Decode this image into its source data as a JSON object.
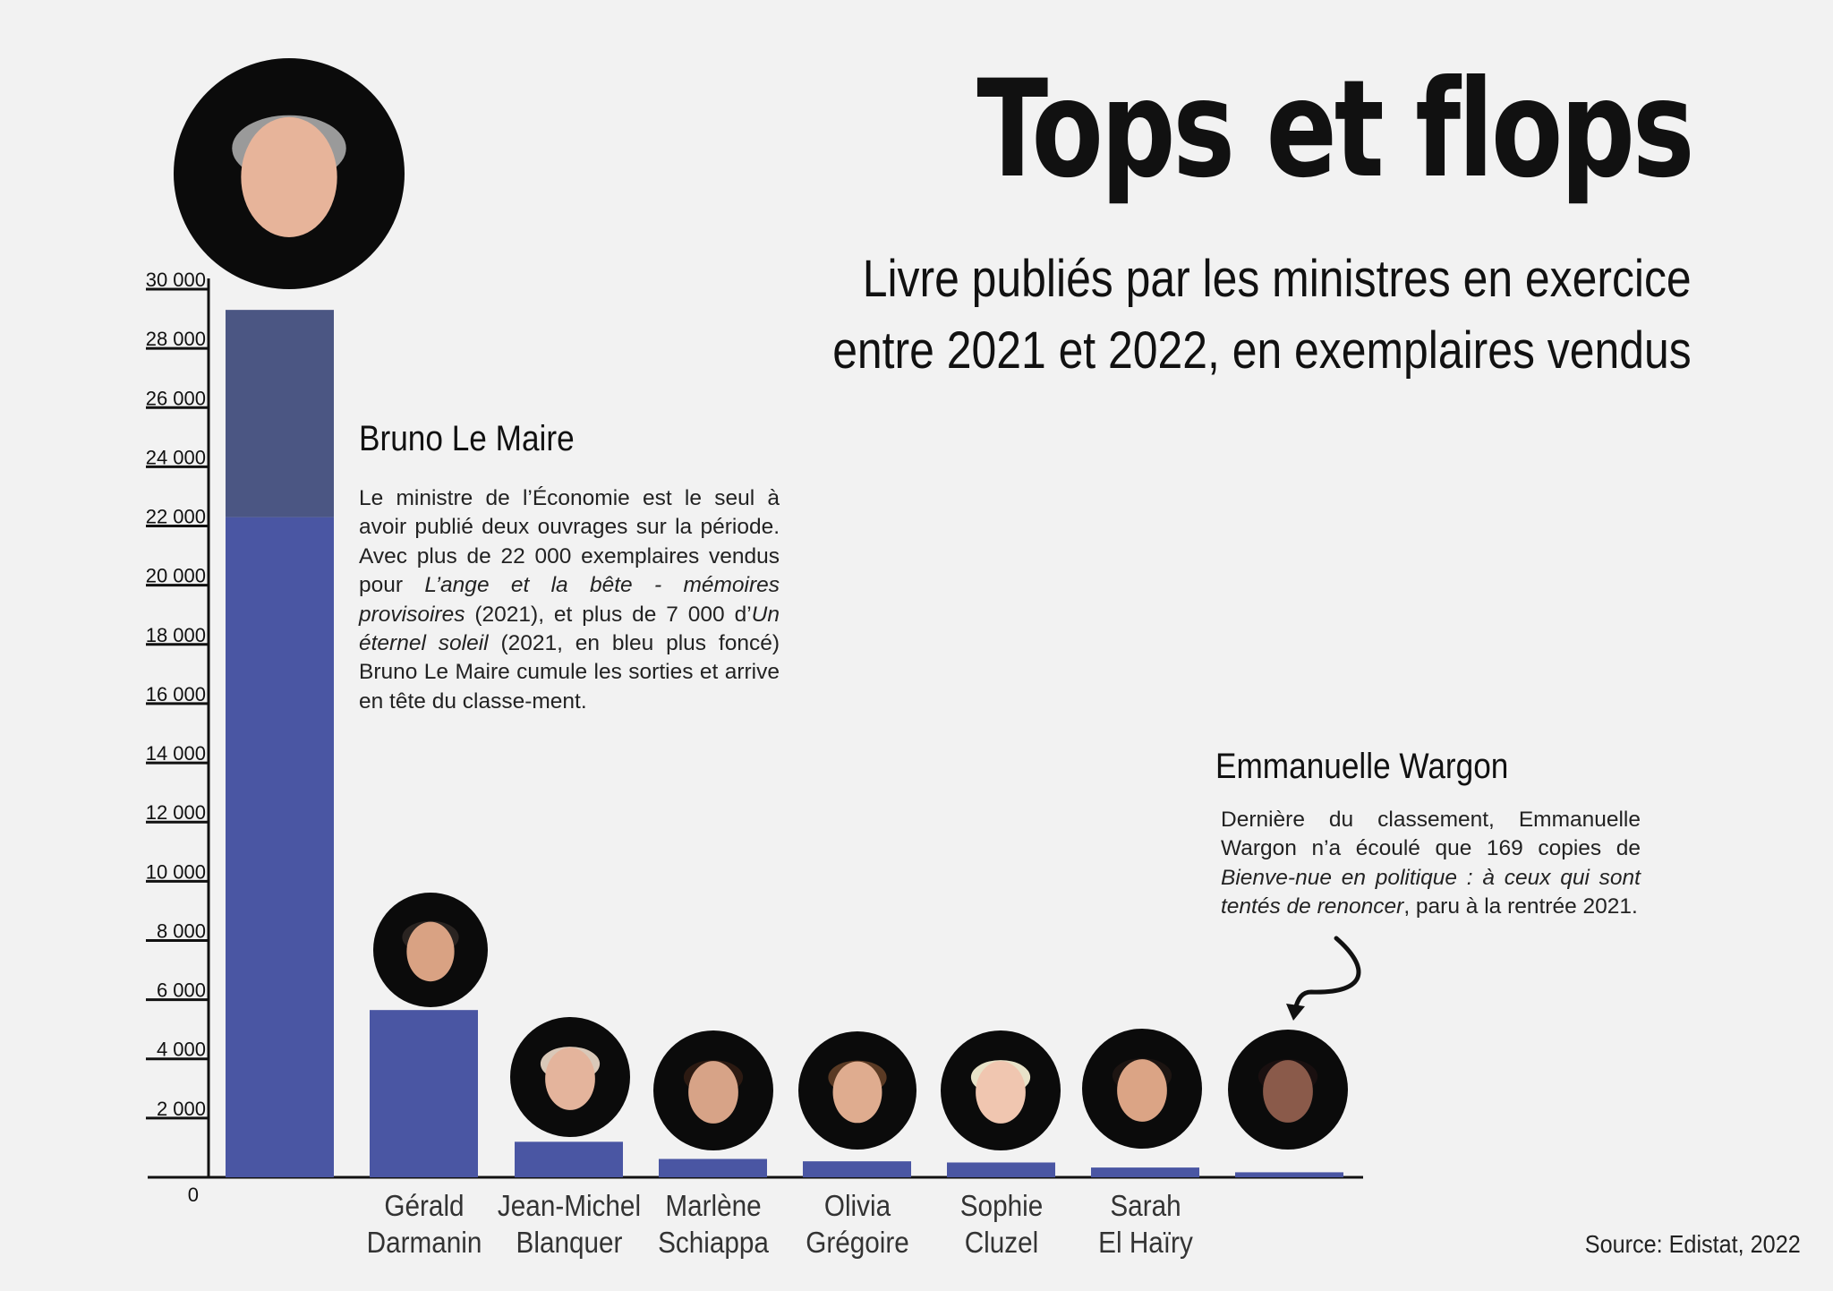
{
  "header": {
    "title": "Tops et flops",
    "subtitle_line1": "Livre publiés par les ministres en exercice",
    "subtitle_line2": "entre 2021 et 2022, en exemplaires vendus"
  },
  "annotations": {
    "bruno": {
      "name": "Bruno Le Maire",
      "t1": "Le ministre de l’Économie est le seul à avoir publié deux ouvrages sur la période. Avec plus de 22 000 exemplaires vendus pour ",
      "i1": "L’ange et la bête - mémoires provisoires",
      "t2": " (2021), et plus de 7 000 d’",
      "i2": "Un éternel soleil",
      "t3": " (2021, en bleu plus foncé) Bruno Le Maire cumule les sorties et arrive en tête du classe-ment."
    },
    "wargon": {
      "name": "Emmanuelle Wargon",
      "t1": "Dernière du classement, Emmanuelle Wargon n’a écoulé que 169 copies de ",
      "i1": "Bienve-nue en politique : à ceux qui sont tentés de renoncer",
      "t2": ", paru à la rentrée 2021."
    }
  },
  "source": "Source: Edistat, 2022",
  "colors": {
    "bar": "#4a56a3",
    "bar_dark": "#4b5683",
    "axis": "#111111",
    "background": "#f2f2f2"
  },
  "chart_data": {
    "type": "bar",
    "stacked": true,
    "categories": [
      "Bruno Le Maire",
      "Gérald Darmanin",
      "Jean-Michel Blanquer",
      "Marlène Schiappa",
      "Olivia Grégoire",
      "Sophie Cluzel",
      "Sarah El Haïry",
      "Emmanuelle Wargon"
    ],
    "category_labels": [
      [],
      [
        "Gérald",
        "Darmanin"
      ],
      [
        "Jean-Michel",
        "Blanquer"
      ],
      [
        "Marlène",
        "Schiappa"
      ],
      [
        "Olivia",
        "Grégoire"
      ],
      [
        "Sophie",
        "Cluzel"
      ],
      [
        "Sarah",
        "El Haïry"
      ],
      []
    ],
    "series": [
      {
        "values": [
          22300,
          5650,
          1200,
          620,
          540,
          500,
          330,
          169
        ]
      },
      {
        "values": [
          7000,
          0,
          0,
          0,
          0,
          0,
          0,
          0
        ]
      }
    ],
    "ylim": [
      0,
      30000
    ],
    "yticks": [
      0,
      2000,
      4000,
      6000,
      8000,
      10000,
      12000,
      14000,
      16000,
      18000,
      20000,
      22000,
      24000,
      26000,
      28000,
      30000
    ],
    "ytick_labels": [
      "0",
      "2 000",
      "4 000",
      "6 000",
      "8 000",
      "10 000",
      "12 000",
      "14 000",
      "16 000",
      "18 000",
      "20 000",
      "22 000",
      "24 000",
      "26 000",
      "28 000",
      "30 000"
    ],
    "xlabel": "",
    "ylabel": ""
  }
}
